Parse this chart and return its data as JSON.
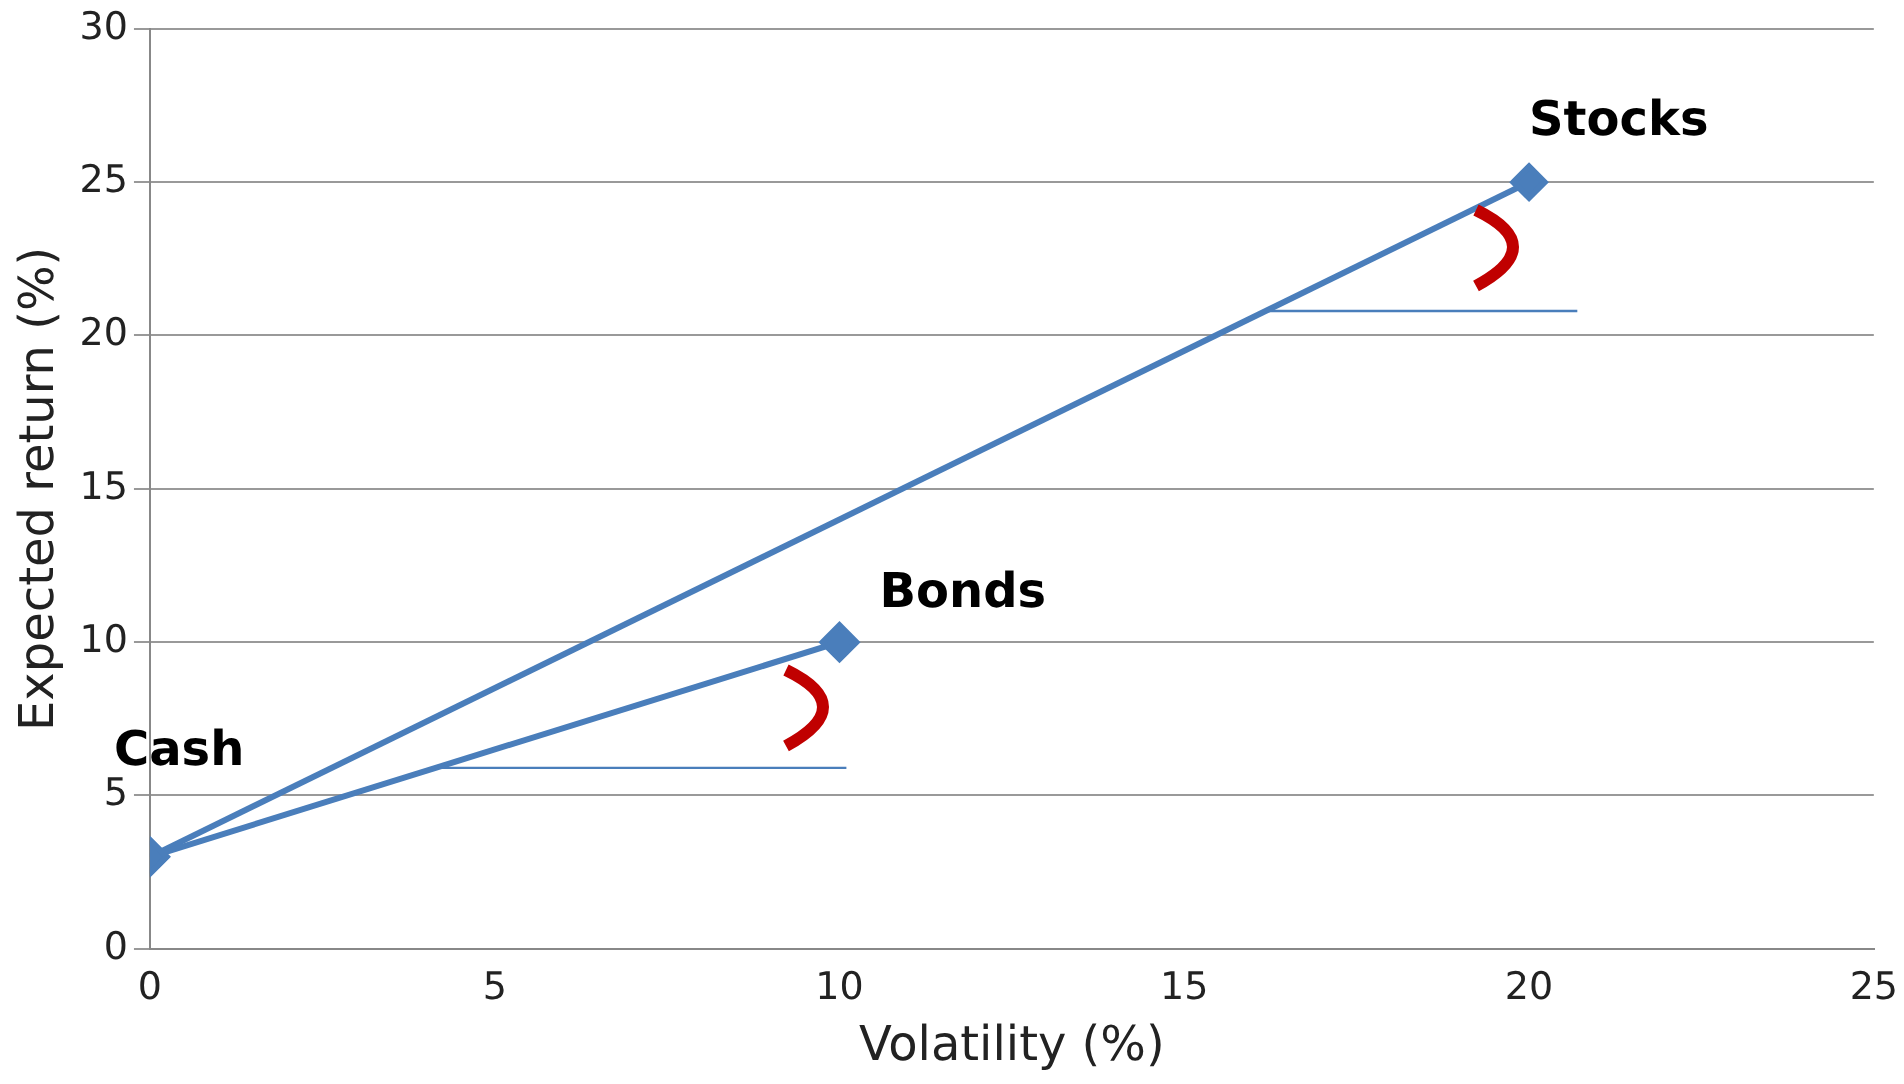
{
  "chart_data": {
    "type": "line",
    "xlabel": "Volatility (%)",
    "ylabel": "Expected return (%)",
    "xlim": [
      0,
      25
    ],
    "xticks": [
      0,
      5,
      10,
      15,
      20,
      25
    ],
    "ylim": [
      0,
      30
    ],
    "yticks": [
      0,
      5,
      10,
      15,
      20,
      25,
      30
    ],
    "grid": "y",
    "legend": false,
    "marker": "diamond",
    "line_style": "solid",
    "series": [
      {
        "color": "#4a7ebb",
        "x": [
          0,
          10
        ],
        "values": [
          3,
          10
        ]
      },
      {
        "color": "#4a7ebb",
        "x": [
          0,
          20
        ],
        "values": [
          3,
          25
        ]
      },
      {
        "color": "#4a7ebb",
        "x": [
          4.1,
          10.1
        ],
        "values": [
          5.9,
          5.9
        ],
        "marker": "none"
      },
      {
        "color": "#4a7ebb",
        "x": [
          16.2,
          20.7
        ],
        "values": [
          20.8,
          20.8
        ],
        "marker": "none"
      }
    ],
    "annotations": [
      {
        "text": "Cash",
        "x": 0,
        "y": 3
      },
      {
        "text": "Bonds",
        "x": 10,
        "y": 10
      },
      {
        "text": "Stocks",
        "x": 20,
        "y": 25
      }
    ]
  }
}
